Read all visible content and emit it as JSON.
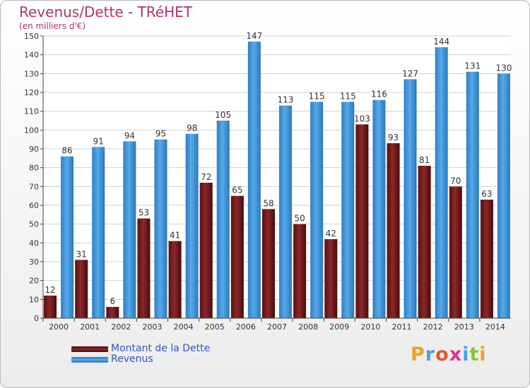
{
  "title": "Revenus/Dette - TRéHET",
  "subtitle": "(en milliers d'€)",
  "colors": {
    "title": "#b2336d",
    "dette": "#7b1c1c",
    "revenus": "#3f95d9",
    "legend_text": "#3355bb",
    "grid": "#d0d0d0"
  },
  "chart_data": {
    "type": "bar",
    "categories": [
      "2000",
      "2001",
      "2002",
      "2003",
      "2004",
      "2005",
      "2006",
      "2007",
      "2008",
      "2009",
      "2010",
      "2011",
      "2012",
      "2013",
      "2014"
    ],
    "series": [
      {
        "name": "Montant de la Dette",
        "values": [
          12,
          31,
          6,
          53,
          41,
          72,
          65,
          58,
          50,
          42,
          103,
          93,
          81,
          70,
          63
        ]
      },
      {
        "name": "Revenus",
        "values": [
          86,
          91,
          94,
          95,
          98,
          105,
          147,
          113,
          115,
          115,
          116,
          127,
          144,
          131,
          130
        ]
      }
    ],
    "ylim": [
      0,
      150
    ],
    "yticks": [
      0,
      10,
      20,
      30,
      40,
      50,
      60,
      70,
      80,
      90,
      100,
      110,
      120,
      130,
      140,
      150
    ],
    "grid": true,
    "legend_position": "bottom-left"
  },
  "legend": {
    "dette_label": "Montant de la Dette",
    "revenus_label": "Revenus"
  },
  "logo": {
    "letters": [
      "P",
      "r",
      "o",
      "x",
      "i",
      "t",
      "i"
    ],
    "colors": [
      "#f0a020",
      "#4aa0e0",
      "#e05a2a",
      "#e23090",
      "#4aa0e0",
      "#8cc43c",
      "#f0a020"
    ]
  }
}
